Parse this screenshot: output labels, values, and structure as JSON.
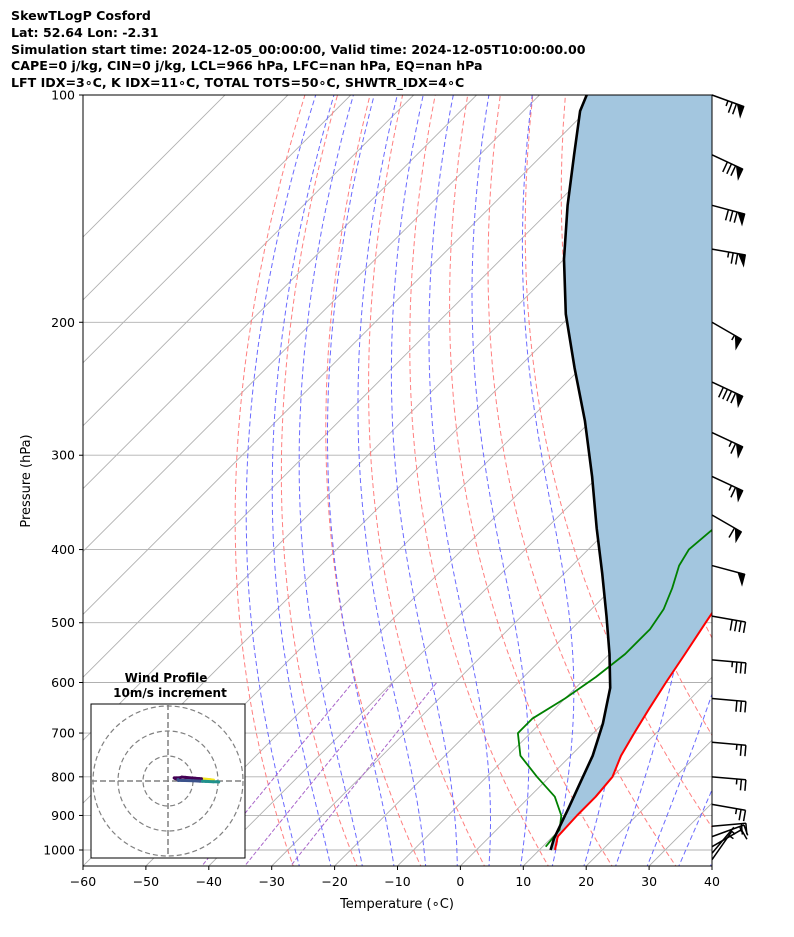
{
  "header": {
    "lines": [
      "SkewTLogP Cosford",
      "Lat: 52.64   Lon: -2.31",
      "Simulation start time: 2024-12-05_00:00:00, Valid time: 2024-12-05T10:00:00.00",
      "CAPE=0 j/kg, CIN=0 j/kg, LCL=966 hPa, LFC=nan hPa, EQ=nan hPa",
      "LFT IDX=3∘C, K IDX=11∘C, TOTAL TOTS=50∘C, SHWTR_IDX=4∘C"
    ]
  },
  "chart_data": {
    "type": "line",
    "subtype": "skew-T log-P",
    "xlabel": "Temperature (∘C)",
    "ylabel": "Pressure (hPa)",
    "xlim": [
      -60,
      40
    ],
    "ylim": [
      1050,
      100
    ],
    "x_ticks": [
      -60,
      -50,
      -40,
      -30,
      -20,
      -10,
      0,
      10,
      20,
      30,
      40
    ],
    "y_ticks": [
      100,
      200,
      300,
      400,
      500,
      600,
      700,
      800,
      900,
      1000
    ],
    "grid": true,
    "series": [
      {
        "kind": "temperature",
        "color": "#ff0000",
        "points": [
          [
            12.5,
            1000
          ],
          [
            10.8,
            960
          ],
          [
            10.5,
            900
          ],
          [
            10.5,
            850
          ],
          [
            10.0,
            800
          ],
          [
            8.0,
            750
          ],
          [
            6.5,
            700
          ],
          [
            5.0,
            650
          ],
          [
            3.5,
            600
          ],
          [
            2.0,
            550
          ],
          [
            0.3,
            500
          ],
          [
            -1.5,
            450
          ],
          [
            -3.0,
            420
          ],
          [
            -3.5,
            400
          ],
          [
            -4.0,
            370
          ],
          [
            -4.5,
            350
          ],
          [
            -5.2,
            320
          ],
          [
            -6.5,
            300
          ],
          [
            -8.5,
            280
          ],
          [
            -10.5,
            265
          ],
          [
            -13.0,
            250
          ],
          [
            -15.0,
            240
          ],
          [
            -15.0,
            230
          ],
          [
            -13.2,
            215
          ],
          [
            -12.6,
            205
          ],
          [
            -13.0,
            195
          ],
          [
            -13.0,
            180
          ],
          [
            -12.5,
            168
          ],
          [
            -11.5,
            155
          ],
          [
            -11.0,
            145
          ],
          [
            -10.5,
            135
          ],
          [
            -11.5,
            125
          ],
          [
            -14.0,
            115
          ],
          [
            -17.0,
            107
          ],
          [
            -21.0,
            100
          ]
        ]
      },
      {
        "kind": "dewpoint",
        "color": "#008000",
        "points": [
          [
            10.5,
            990
          ],
          [
            10.0,
            940
          ],
          [
            8.0,
            900
          ],
          [
            4.0,
            850
          ],
          [
            -2.0,
            800
          ],
          [
            -8.0,
            750
          ],
          [
            -12.0,
            700
          ],
          [
            -12.0,
            670
          ],
          [
            -10.0,
            630
          ],
          [
            -8.5,
            590
          ],
          [
            -7.5,
            550
          ],
          [
            -7.5,
            510
          ],
          [
            -8.5,
            480
          ],
          [
            -10.5,
            450
          ],
          [
            -13.0,
            420
          ],
          [
            -14.0,
            400
          ],
          [
            -13.5,
            380
          ],
          [
            -13.0,
            360
          ],
          [
            -13.0,
            340
          ],
          [
            -13.5,
            320
          ],
          [
            -14.0,
            310
          ],
          [
            -15.0,
            295
          ],
          [
            -17.0,
            280
          ],
          [
            -18.0,
            270
          ],
          [
            -19.5,
            260
          ],
          [
            -20.5,
            250
          ],
          [
            -22.0,
            240
          ],
          [
            -22.0,
            230
          ],
          [
            -22.0,
            215
          ],
          [
            -24.0,
            205
          ],
          [
            -27.0,
            197
          ],
          [
            -29.0,
            190
          ],
          [
            -29.5,
            180
          ],
          [
            -29.5,
            170
          ],
          [
            -30.0,
            160
          ],
          [
            -31.0,
            150
          ],
          [
            -30.0,
            140
          ],
          [
            -29.0,
            130
          ],
          [
            -28.0,
            120
          ],
          [
            -27.5,
            110
          ],
          [
            -27.5,
            100
          ]
        ]
      },
      {
        "kind": "parcel",
        "color": "#000000",
        "points": [
          [
            11.8,
            1000
          ],
          [
            10.5,
            965
          ],
          [
            9.5,
            930
          ],
          [
            8.0,
            880
          ],
          [
            6.0,
            820
          ],
          [
            3.5,
            750
          ],
          [
            0.0,
            680
          ],
          [
            -4.5,
            610
          ],
          [
            -10.0,
            550
          ],
          [
            -16.5,
            490
          ],
          [
            -24.0,
            430
          ],
          [
            -32.0,
            375
          ],
          [
            -41.0,
            320
          ],
          [
            -51.0,
            270
          ],
          [
            -61.0,
            230
          ],
          [
            -71.0,
            195
          ],
          [
            -80.0,
            165
          ],
          [
            -88.0,
            140
          ],
          [
            -95.0,
            120
          ],
          [
            -101.0,
            105
          ],
          [
            -102.5,
            100
          ]
        ]
      }
    ],
    "shading": {
      "color": "#a3c6df",
      "between": [
        "parcel",
        "temperature"
      ]
    },
    "background_lines": {
      "isotherms": {
        "color": "#b0b0b0"
      },
      "dry_adiabats": {
        "color": "#ff7f7f"
      },
      "moist_adiabats": {
        "color": "#6a6aff"
      },
      "mixing_ratio": {
        "color": "#a865c9"
      }
    },
    "wind_barbs": {
      "color": "#000000",
      "barbs": [
        {
          "p": 100,
          "speed": 75,
          "dir": 290
        },
        {
          "p": 120,
          "speed": 80,
          "dir": 295
        },
        {
          "p": 140,
          "speed": 80,
          "dir": 285
        },
        {
          "p": 160,
          "speed": 75,
          "dir": 280
        },
        {
          "p": 200,
          "speed": 55,
          "dir": 300
        },
        {
          "p": 240,
          "speed": 90,
          "dir": 295
        },
        {
          "p": 280,
          "speed": 65,
          "dir": 295
        },
        {
          "p": 320,
          "speed": 65,
          "dir": 295
        },
        {
          "p": 360,
          "speed": 60,
          "dir": 300
        },
        {
          "p": 420,
          "speed": 50,
          "dir": 285
        },
        {
          "p": 490,
          "speed": 40,
          "dir": 280
        },
        {
          "p": 560,
          "speed": 35,
          "dir": 275
        },
        {
          "p": 630,
          "speed": 30,
          "dir": 275
        },
        {
          "p": 720,
          "speed": 25,
          "dir": 275
        },
        {
          "p": 800,
          "speed": 25,
          "dir": 275
        },
        {
          "p": 870,
          "speed": 25,
          "dir": 280
        },
        {
          "p": 930,
          "speed": 20,
          "dir": 265
        },
        {
          "p": 960,
          "speed": 15,
          "dir": 250
        },
        {
          "p": 990,
          "speed": 10,
          "dir": 240
        },
        {
          "p": 1010,
          "speed": 5,
          "dir": 220
        },
        {
          "p": 1030,
          "speed": 5,
          "dir": 215
        }
      ]
    },
    "inset": {
      "title": "Wind Profile",
      "subtitle": "10m/s increment",
      "hodograph": [
        [
          -1.8,
          6.9
        ],
        [
          -3.3,
          6.1
        ],
        [
          -6.6,
          4.6
        ],
        [
          -7.6,
          4.3
        ],
        [
          -9.2,
          3.8
        ],
        [
          -13.1,
          2.3
        ],
        [
          -14.5,
          1.9
        ],
        [
          -15.2,
          2.9
        ],
        [
          -16.7,
          3.2
        ],
        [
          -17.5,
          3.2
        ],
        [
          -17.2,
          4.0
        ],
        [
          -16.7,
          4.8
        ],
        [
          -16.0,
          5.9
        ],
        [
          -15.9,
          6.5
        ],
        [
          -15.8,
          7.3
        ],
        [
          -13.2,
          7.6
        ],
        [
          -9.9,
          8.0
        ],
        [
          -7.3,
          8.6
        ],
        [
          -6.2,
          8.7
        ],
        [
          -4.9,
          9.0
        ],
        [
          -1.9,
          9.5
        ],
        [
          -0.4,
          9.5
        ],
        [
          0.3,
          10.0
        ]
      ],
      "colors": [
        "#f5e61d",
        "#440154",
        "#3b528b",
        "#21918c"
      ]
    }
  }
}
